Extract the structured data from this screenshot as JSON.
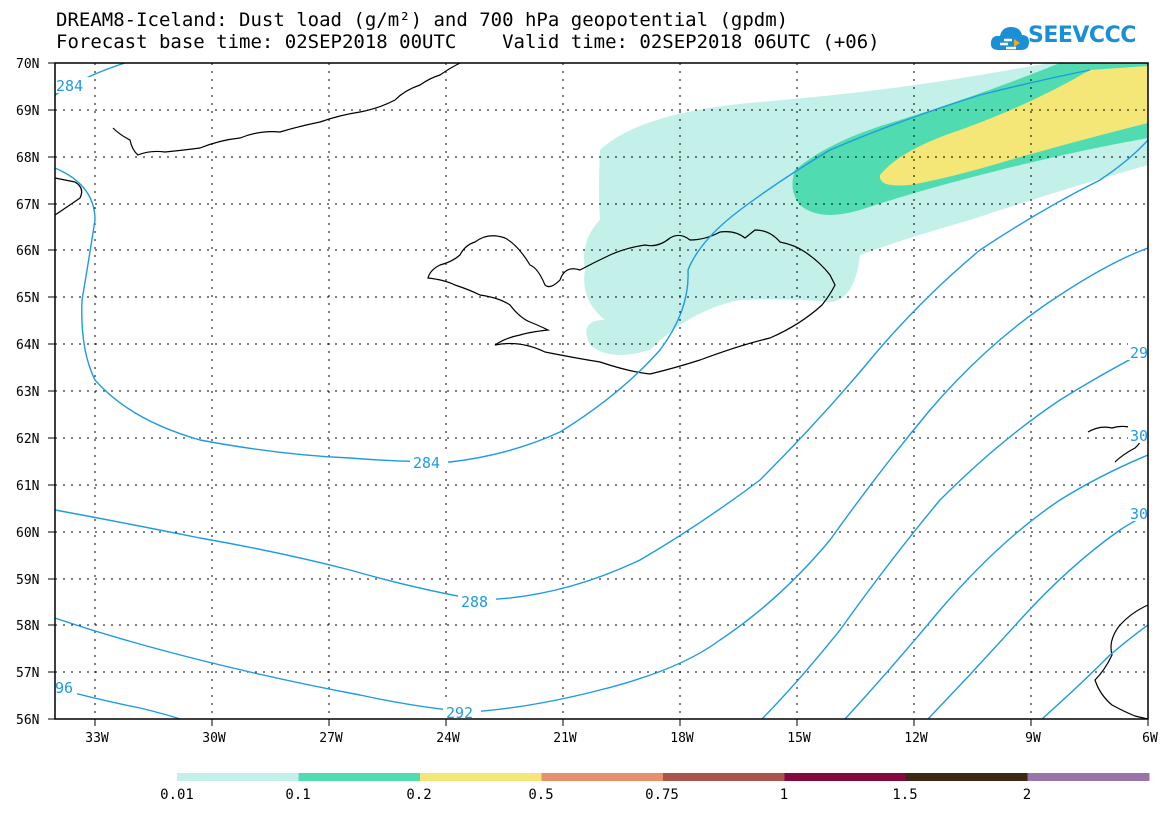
{
  "header": {
    "title_line1": "DREAM8-Iceland: Dust load (g/m²) and 700 hPa geopotential (gpdm)",
    "title_line2": "Forecast base time: 02SEP2018 00UTC    Valid time: 02SEP2018 06UTC (+06)",
    "logo_text": "SEEVCCC"
  },
  "map": {
    "lat_labels": [
      "70N",
      "69N",
      "68N",
      "67N",
      "66N",
      "65N",
      "64N",
      "63N",
      "62N",
      "61N",
      "60N",
      "59N",
      "58N",
      "57N",
      "56N"
    ],
    "lon_labels": [
      "33W",
      "30W",
      "27W",
      "24W",
      "21W",
      "18W",
      "15W",
      "12W",
      "9W",
      "6W"
    ],
    "contour_labels": [
      "284",
      "284",
      "288",
      "292",
      "96",
      "29",
      "30",
      "30"
    ],
    "contour_color": "#1e9be0"
  },
  "colorbar": {
    "tick_labels": [
      "0.01",
      "0.1",
      "0.2",
      "0.5",
      "0.75",
      "1",
      "1.5",
      "2"
    ],
    "colors": [
      "#c3f0e8",
      "#50dcb0",
      "#f5e678",
      "#e6916a",
      "#a8554a",
      "#820a3c",
      "#3c2814",
      "#9a74a8"
    ]
  }
}
